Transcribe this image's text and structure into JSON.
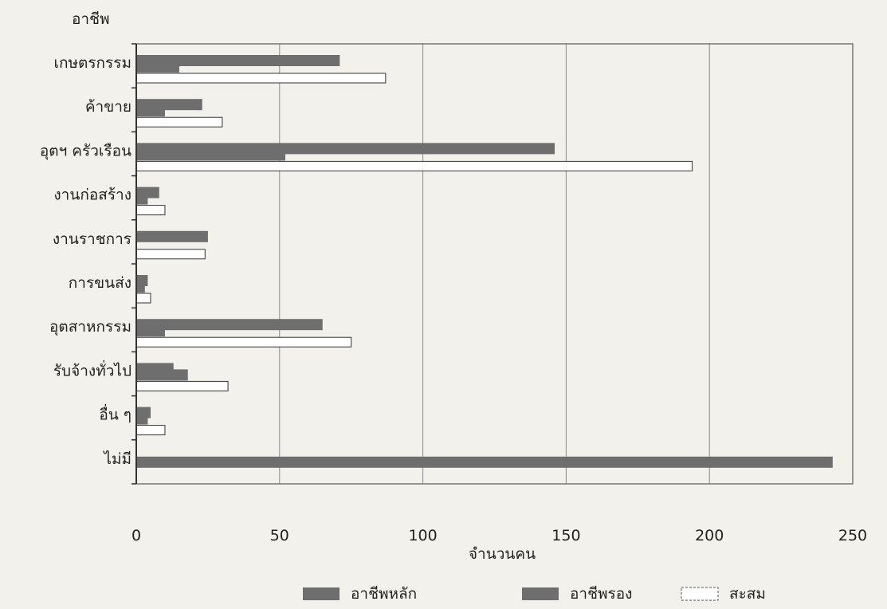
{
  "chart_data": {
    "type": "bar",
    "orientation": "horizontal",
    "ylabel": "อาชีพ",
    "xlabel": "จำนวนคน",
    "xlim": [
      0,
      250
    ],
    "xticks": [
      0,
      50,
      100,
      150,
      200,
      250
    ],
    "grid": true,
    "legend_position": "bottom",
    "categories": [
      "เกษตรกรรม",
      "ค้าขาย",
      "อุตฯ ครัวเรือน",
      "งานก่อสร้าง",
      "งานราชการ",
      "การขนส่ง",
      "อุตสาหกรรม",
      "รับจ้างทั่วไป",
      "อื่น ๆ",
      "ไม่มี"
    ],
    "series": [
      {
        "name": "อาชีพหลัก",
        "color": "#6e6e6e",
        "values": [
          71,
          23,
          146,
          8,
          25,
          4,
          65,
          13,
          5,
          243
        ]
      },
      {
        "name": "อาชีพรอง",
        "color": "#6e6e6e",
        "values": [
          15,
          10,
          52,
          4,
          0,
          3,
          10,
          18,
          4,
          0
        ]
      },
      {
        "name": "สะสม",
        "color": "#ffffff",
        "values": [
          87,
          30,
          194,
          10,
          24,
          5,
          75,
          32,
          10,
          0
        ]
      }
    ]
  }
}
